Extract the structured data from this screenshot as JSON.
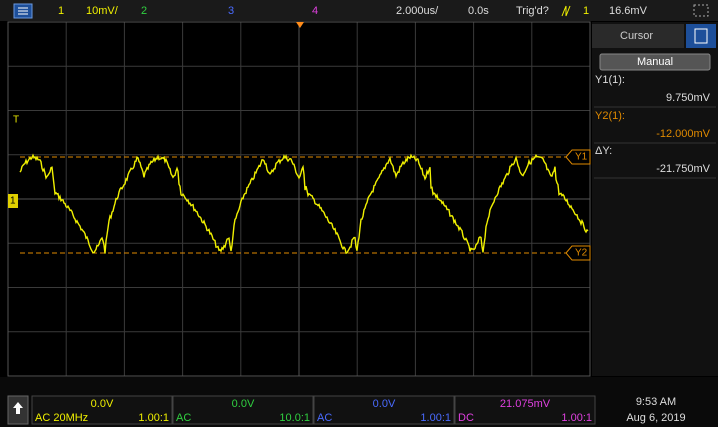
{
  "top_bar": {
    "ch1": "1",
    "ch1_scale": "10mV/",
    "ch2": "2",
    "ch3": "3",
    "ch4": "4",
    "time_scale": "2.000us/",
    "delay": "0.0s",
    "trigger_status": "Trig'd?",
    "trigger_source": "1",
    "trigger_level": "16.6mV"
  },
  "markers": {
    "trigger": "T",
    "ch1": "1",
    "y1": "Y1",
    "y2": "Y2"
  },
  "cursor_panel": {
    "title": "Cursor",
    "mode": "Manual",
    "y1_label": "Y1(1):",
    "y1_value": "9.750mV",
    "y2_label": "Y2(1):",
    "y2_value": "-12.000mV",
    "dy_label": "ΔY:",
    "dy_value": "-21.750mV"
  },
  "channels": [
    {
      "offset": "0.0V",
      "coupling": "AC 20MHz",
      "probe": "1.00:1"
    },
    {
      "offset": "0.0V",
      "coupling": "AC",
      "probe": "10.0:1"
    },
    {
      "offset": "0.0V",
      "coupling": "AC",
      "probe": "1.00:1"
    },
    {
      "offset": "21.075mV",
      "coupling": "DC",
      "probe": "1.00:1"
    }
  ],
  "clock": {
    "time": "9:53 AM",
    "date": "Aug 6, 2019"
  }
}
